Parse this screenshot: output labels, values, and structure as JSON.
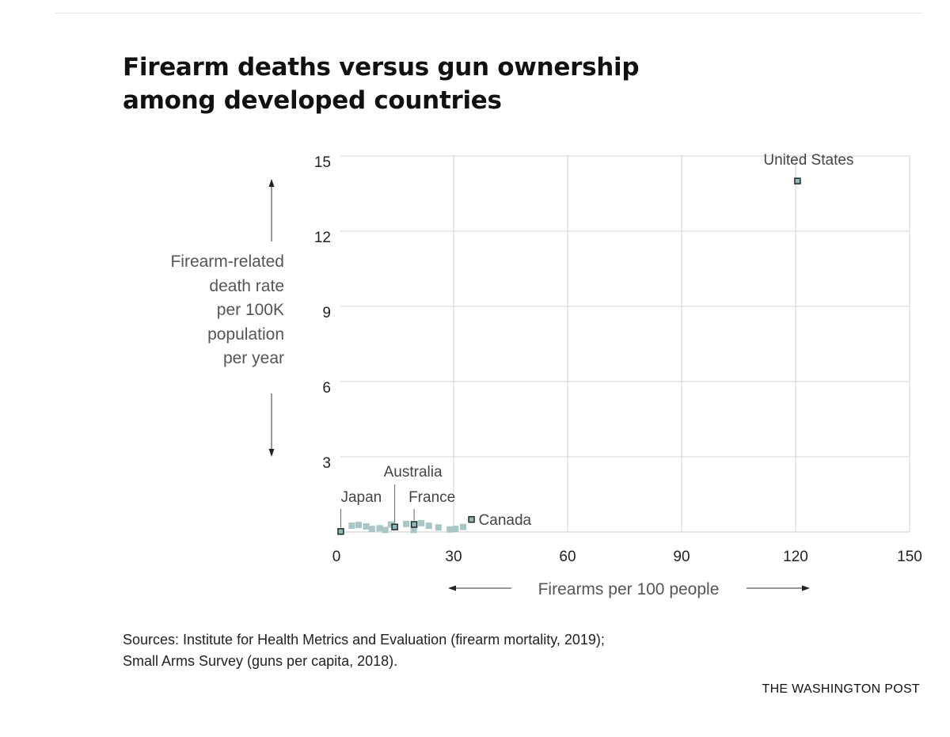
{
  "title_line1": "Firearm deaths versus gun ownership",
  "title_line2": "among developed countries",
  "credit": "THE WASHINGTON POST",
  "sources": {
    "line1": "Sources: Institute for Health Metrics and Evaluation (firearm mortality, 2019);",
    "line2": "Small Arms Survey (guns per capita, 2018)."
  },
  "colors": {
    "point_fill": "#a8c6c6",
    "highlight_fill": "#8fb8b8",
    "highlight_stroke": "#1f2b2b",
    "grid": "#d4d4d4",
    "axis_text": "#222222"
  },
  "chart_data": {
    "type": "scatter",
    "title": "Firearm deaths versus gun ownership among developed countries",
    "xlabel": "Firearms per 100 people",
    "ylabel_lines": [
      "Firearm-related",
      "death rate",
      "per 100K",
      "population",
      "per year"
    ],
    "xlim": [
      0,
      150
    ],
    "ylim": [
      0,
      15
    ],
    "xticks": [
      0,
      30,
      60,
      90,
      120,
      150
    ],
    "yticks": [
      3,
      6,
      9,
      12,
      15
    ],
    "grid": true,
    "highlighted": [
      {
        "label": "United States",
        "x": 120.5,
        "y": 14.0
      },
      {
        "label": "Canada",
        "x": 34.7,
        "y": 0.5
      },
      {
        "label": "France",
        "x": 19.6,
        "y": 0.3
      },
      {
        "label": "Australia",
        "x": 14.5,
        "y": 0.2
      },
      {
        "label": "Japan",
        "x": 0.3,
        "y": 0.02
      }
    ],
    "other_points": [
      {
        "x": 3.2,
        "y": 0.25
      },
      {
        "x": 5.0,
        "y": 0.28
      },
      {
        "x": 7.0,
        "y": 0.22
      },
      {
        "x": 8.5,
        "y": 0.12
      },
      {
        "x": 10.5,
        "y": 0.15
      },
      {
        "x": 12.0,
        "y": 0.08
      },
      {
        "x": 13.5,
        "y": 0.3
      },
      {
        "x": 17.5,
        "y": 0.32
      },
      {
        "x": 19.5,
        "y": 0.08
      },
      {
        "x": 21.5,
        "y": 0.35
      },
      {
        "x": 23.5,
        "y": 0.25
      },
      {
        "x": 26.0,
        "y": 0.18
      },
      {
        "x": 29.0,
        "y": 0.1
      },
      {
        "x": 30.5,
        "y": 0.12
      },
      {
        "x": 32.5,
        "y": 0.2
      }
    ]
  }
}
